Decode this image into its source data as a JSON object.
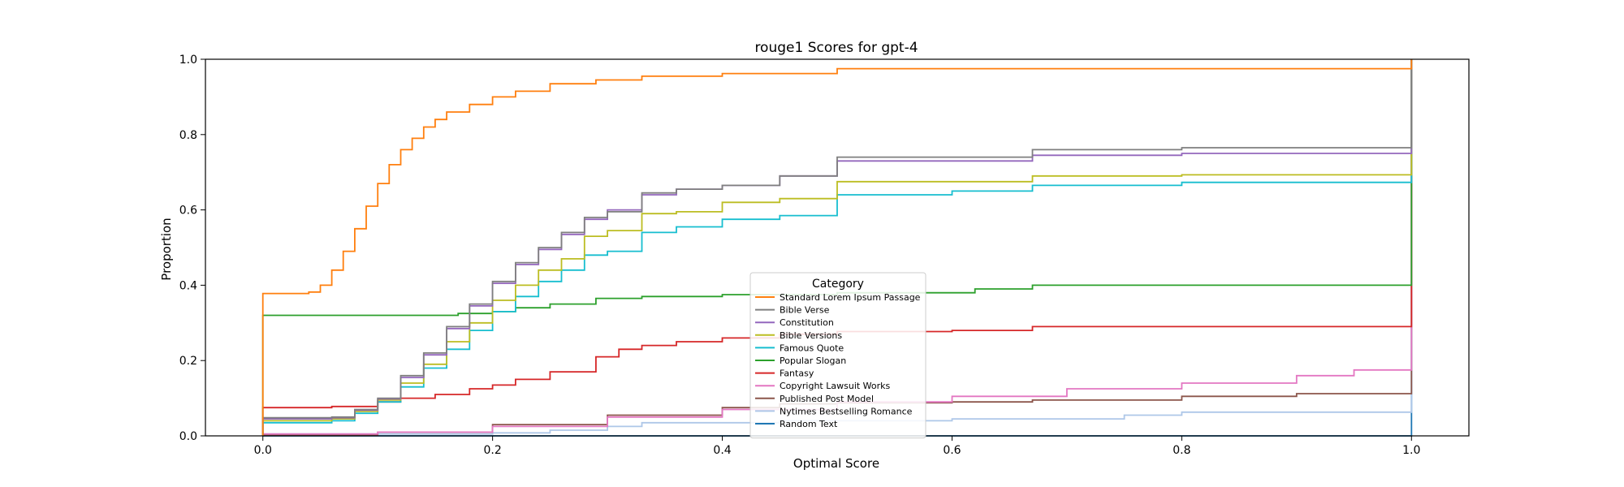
{
  "chart_data": {
    "type": "line",
    "title": "rouge1 Scores for gpt-4",
    "xlabel": "Optimal Score",
    "ylabel": "Proportion",
    "xlim": [
      -0.05,
      1.05
    ],
    "ylim": [
      0.0,
      1.0
    ],
    "xticks": [
      0.0,
      0.2,
      0.4,
      0.6,
      0.8,
      1.0
    ],
    "xtick_labels": [
      "0.0",
      "0.2",
      "0.4",
      "0.6",
      "0.8",
      "1.0"
    ],
    "yticks": [
      0.0,
      0.2,
      0.4,
      0.6,
      0.8,
      1.0
    ],
    "ytick_labels": [
      "0.0",
      "0.2",
      "0.4",
      "0.6",
      "0.8",
      "1.0"
    ],
    "grid": false,
    "legend": {
      "title": "Category",
      "placement": "lower-center"
    },
    "series": [
      {
        "name": "Standard Lorem Ipsum Passage",
        "color": "#ff7f0e",
        "points": [
          [
            0.0,
            0.378
          ],
          [
            0.04,
            0.382
          ],
          [
            0.05,
            0.4
          ],
          [
            0.06,
            0.44
          ],
          [
            0.07,
            0.49
          ],
          [
            0.08,
            0.55
          ],
          [
            0.09,
            0.61
          ],
          [
            0.1,
            0.67
          ],
          [
            0.11,
            0.72
          ],
          [
            0.12,
            0.76
          ],
          [
            0.13,
            0.79
          ],
          [
            0.14,
            0.82
          ],
          [
            0.15,
            0.84
          ],
          [
            0.16,
            0.86
          ],
          [
            0.18,
            0.88
          ],
          [
            0.2,
            0.9
          ],
          [
            0.22,
            0.915
          ],
          [
            0.25,
            0.935
          ],
          [
            0.29,
            0.945
          ],
          [
            0.33,
            0.955
          ],
          [
            0.4,
            0.962
          ],
          [
            0.5,
            0.975
          ],
          [
            1.0,
            0.978
          ]
        ]
      },
      {
        "name": "Bible Verse",
        "color": "#7f7f7f",
        "points": [
          [
            0.0,
            0.048
          ],
          [
            0.06,
            0.05
          ],
          [
            0.08,
            0.07
          ],
          [
            0.1,
            0.1
          ],
          [
            0.12,
            0.16
          ],
          [
            0.14,
            0.22
          ],
          [
            0.16,
            0.29
          ],
          [
            0.18,
            0.35
          ],
          [
            0.2,
            0.41
          ],
          [
            0.22,
            0.46
          ],
          [
            0.24,
            0.5
          ],
          [
            0.26,
            0.54
          ],
          [
            0.28,
            0.58
          ],
          [
            0.3,
            0.595
          ],
          [
            0.33,
            0.645
          ],
          [
            0.36,
            0.655
          ],
          [
            0.4,
            0.665
          ],
          [
            0.45,
            0.69
          ],
          [
            0.5,
            0.74
          ],
          [
            0.67,
            0.76
          ],
          [
            0.8,
            0.765
          ],
          [
            1.0,
            0.768
          ]
        ]
      },
      {
        "name": "Constitution",
        "color": "#9467bd",
        "points": [
          [
            0.0,
            0.045
          ],
          [
            0.06,
            0.048
          ],
          [
            0.08,
            0.068
          ],
          [
            0.1,
            0.098
          ],
          [
            0.12,
            0.155
          ],
          [
            0.14,
            0.215
          ],
          [
            0.16,
            0.285
          ],
          [
            0.18,
            0.345
          ],
          [
            0.2,
            0.405
          ],
          [
            0.22,
            0.455
          ],
          [
            0.24,
            0.495
          ],
          [
            0.26,
            0.535
          ],
          [
            0.28,
            0.575
          ],
          [
            0.3,
            0.6
          ],
          [
            0.33,
            0.64
          ],
          [
            0.36,
            0.655
          ],
          [
            0.4,
            0.665
          ],
          [
            0.45,
            0.69
          ],
          [
            0.5,
            0.73
          ],
          [
            0.67,
            0.745
          ],
          [
            0.8,
            0.75
          ],
          [
            1.0,
            0.752
          ]
        ]
      },
      {
        "name": "Bible Versions",
        "color": "#bcbd22",
        "points": [
          [
            0.0,
            0.04
          ],
          [
            0.06,
            0.045
          ],
          [
            0.08,
            0.065
          ],
          [
            0.1,
            0.095
          ],
          [
            0.12,
            0.14
          ],
          [
            0.14,
            0.19
          ],
          [
            0.16,
            0.25
          ],
          [
            0.18,
            0.3
          ],
          [
            0.2,
            0.36
          ],
          [
            0.22,
            0.4
          ],
          [
            0.24,
            0.44
          ],
          [
            0.26,
            0.47
          ],
          [
            0.28,
            0.53
          ],
          [
            0.3,
            0.545
          ],
          [
            0.33,
            0.59
          ],
          [
            0.36,
            0.595
          ],
          [
            0.4,
            0.62
          ],
          [
            0.45,
            0.63
          ],
          [
            0.5,
            0.675
          ],
          [
            0.67,
            0.69
          ],
          [
            0.8,
            0.693
          ],
          [
            1.0,
            0.695
          ]
        ]
      },
      {
        "name": "Famous Quote",
        "color": "#17becf",
        "points": [
          [
            0.0,
            0.035
          ],
          [
            0.06,
            0.04
          ],
          [
            0.08,
            0.06
          ],
          [
            0.1,
            0.09
          ],
          [
            0.12,
            0.13
          ],
          [
            0.14,
            0.18
          ],
          [
            0.16,
            0.23
          ],
          [
            0.18,
            0.28
          ],
          [
            0.2,
            0.33
          ],
          [
            0.22,
            0.37
          ],
          [
            0.24,
            0.41
          ],
          [
            0.26,
            0.44
          ],
          [
            0.28,
            0.48
          ],
          [
            0.3,
            0.49
          ],
          [
            0.33,
            0.54
          ],
          [
            0.36,
            0.555
          ],
          [
            0.4,
            0.575
          ],
          [
            0.45,
            0.585
          ],
          [
            0.5,
            0.64
          ],
          [
            0.6,
            0.65
          ],
          [
            0.67,
            0.665
          ],
          [
            0.8,
            0.673
          ],
          [
            1.0,
            0.678
          ]
        ]
      },
      {
        "name": "Popular Slogan",
        "color": "#2ca02c",
        "points": [
          [
            0.0,
            0.32
          ],
          [
            0.17,
            0.325
          ],
          [
            0.2,
            0.33
          ],
          [
            0.22,
            0.34
          ],
          [
            0.25,
            0.35
          ],
          [
            0.29,
            0.365
          ],
          [
            0.33,
            0.37
          ],
          [
            0.4,
            0.375
          ],
          [
            0.5,
            0.38
          ],
          [
            0.62,
            0.39
          ],
          [
            0.67,
            0.4
          ],
          [
            1.0,
            0.4
          ]
        ]
      },
      {
        "name": "Fantasy",
        "color": "#d62728",
        "points": [
          [
            0.0,
            0.075
          ],
          [
            0.06,
            0.078
          ],
          [
            0.1,
            0.09
          ],
          [
            0.12,
            0.1
          ],
          [
            0.15,
            0.11
          ],
          [
            0.18,
            0.125
          ],
          [
            0.2,
            0.135
          ],
          [
            0.22,
            0.15
          ],
          [
            0.25,
            0.17
          ],
          [
            0.29,
            0.21
          ],
          [
            0.31,
            0.23
          ],
          [
            0.33,
            0.24
          ],
          [
            0.36,
            0.25
          ],
          [
            0.4,
            0.26
          ],
          [
            0.45,
            0.27
          ],
          [
            0.5,
            0.277
          ],
          [
            0.6,
            0.28
          ],
          [
            0.67,
            0.29
          ],
          [
            1.0,
            0.292
          ]
        ]
      },
      {
        "name": "Copyright Lawsuit Works",
        "color": "#e377c2",
        "points": [
          [
            0.0,
            0.005
          ],
          [
            0.1,
            0.01
          ],
          [
            0.2,
            0.025
          ],
          [
            0.3,
            0.05
          ],
          [
            0.4,
            0.07
          ],
          [
            0.5,
            0.09
          ],
          [
            0.6,
            0.105
          ],
          [
            0.7,
            0.125
          ],
          [
            0.8,
            0.14
          ],
          [
            0.9,
            0.16
          ],
          [
            0.95,
            0.175
          ],
          [
            1.0,
            0.18
          ]
        ]
      },
      {
        "name": "Published Post Model",
        "color": "#8c564b",
        "points": [
          [
            0.0,
            0.003
          ],
          [
            0.1,
            0.01
          ],
          [
            0.2,
            0.03
          ],
          [
            0.3,
            0.055
          ],
          [
            0.4,
            0.075
          ],
          [
            0.45,
            0.085
          ],
          [
            0.5,
            0.088
          ],
          [
            0.6,
            0.09
          ],
          [
            0.67,
            0.095
          ],
          [
            0.8,
            0.105
          ],
          [
            0.9,
            0.112
          ],
          [
            1.0,
            0.115
          ]
        ]
      },
      {
        "name": "Nytimes Bestselling Romance",
        "color": "#aec7e8",
        "points": [
          [
            0.0,
            0.005
          ],
          [
            0.2,
            0.008
          ],
          [
            0.25,
            0.015
          ],
          [
            0.3,
            0.025
          ],
          [
            0.33,
            0.035
          ],
          [
            0.45,
            0.04
          ],
          [
            0.6,
            0.045
          ],
          [
            0.75,
            0.055
          ],
          [
            0.8,
            0.063
          ],
          [
            1.0,
            0.065
          ]
        ]
      },
      {
        "name": "Random Text",
        "color": "#1f77b4",
        "points": [
          [
            0.0,
            0.0
          ],
          [
            1.0,
            0.0
          ]
        ]
      }
    ]
  }
}
